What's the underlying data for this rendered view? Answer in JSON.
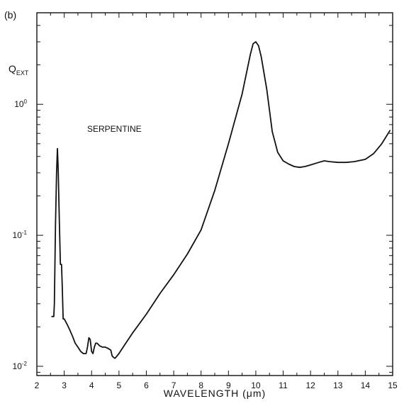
{
  "panel_label": "(b)",
  "chart_data": {
    "type": "line",
    "xlabel": "WAVELENGTH (μm)",
    "ylabel": {
      "base": "Q",
      "subscript": "EXT"
    },
    "annotation": "SERPENTINE",
    "x_scale": "linear",
    "y_scale": "log",
    "xlim": [
      2,
      15
    ],
    "ylim": [
      0.0085,
      5
    ],
    "x_ticks": [
      "2",
      "3",
      "4",
      "5",
      "6",
      "7",
      "8",
      "9",
      "10",
      "11",
      "12",
      "13",
      "14",
      "15"
    ],
    "y_ticks": [
      {
        "value": 1,
        "label": "10^0",
        "base": "10",
        "exp": "0"
      },
      {
        "value": 0.1,
        "label": "10^-1",
        "base": "10",
        "exp": "-1"
      },
      {
        "value": 0.01,
        "label": "10^-2",
        "base": "10",
        "exp": "-2"
      }
    ],
    "grid": false,
    "series": [
      {
        "color": "#111111",
        "x": [
          2.55,
          2.62,
          2.64,
          2.68,
          2.72,
          2.75,
          2.78,
          2.82,
          2.86,
          2.9,
          2.93,
          2.96,
          3.0,
          3.05,
          3.1,
          3.2,
          3.3,
          3.4,
          3.5,
          3.6,
          3.7,
          3.8,
          3.85,
          3.9,
          3.95,
          4.0,
          4.05,
          4.1,
          4.15,
          4.2,
          4.3,
          4.4,
          4.5,
          4.6,
          4.7,
          4.75,
          4.8,
          4.85,
          4.9,
          5.0,
          5.2,
          5.5,
          6.0,
          6.5,
          7.0,
          7.5,
          8.0,
          8.5,
          9.0,
          9.5,
          9.8,
          9.9,
          10.0,
          10.1,
          10.2,
          10.4,
          10.6,
          10.8,
          11.0,
          11.2,
          11.4,
          11.6,
          11.8,
          12.0,
          12.3,
          12.5,
          12.7,
          13.0,
          13.3,
          13.6,
          14.0,
          14.3,
          14.6,
          14.9
        ],
        "y": [
          0.024,
          0.024,
          0.03,
          0.12,
          0.3,
          0.46,
          0.32,
          0.13,
          0.06,
          0.06,
          0.04,
          0.023,
          0.023,
          0.022,
          0.021,
          0.019,
          0.017,
          0.015,
          0.014,
          0.013,
          0.0125,
          0.0125,
          0.014,
          0.0165,
          0.016,
          0.013,
          0.0125,
          0.014,
          0.015,
          0.015,
          0.0143,
          0.014,
          0.014,
          0.0137,
          0.0133,
          0.012,
          0.0117,
          0.0115,
          0.0118,
          0.0125,
          0.0145,
          0.018,
          0.025,
          0.036,
          0.05,
          0.072,
          0.11,
          0.22,
          0.5,
          1.2,
          2.4,
          2.9,
          3.0,
          2.8,
          2.3,
          1.3,
          0.62,
          0.43,
          0.37,
          0.35,
          0.335,
          0.33,
          0.335,
          0.345,
          0.36,
          0.37,
          0.365,
          0.36,
          0.36,
          0.365,
          0.38,
          0.42,
          0.5,
          0.63
        ]
      }
    ]
  }
}
